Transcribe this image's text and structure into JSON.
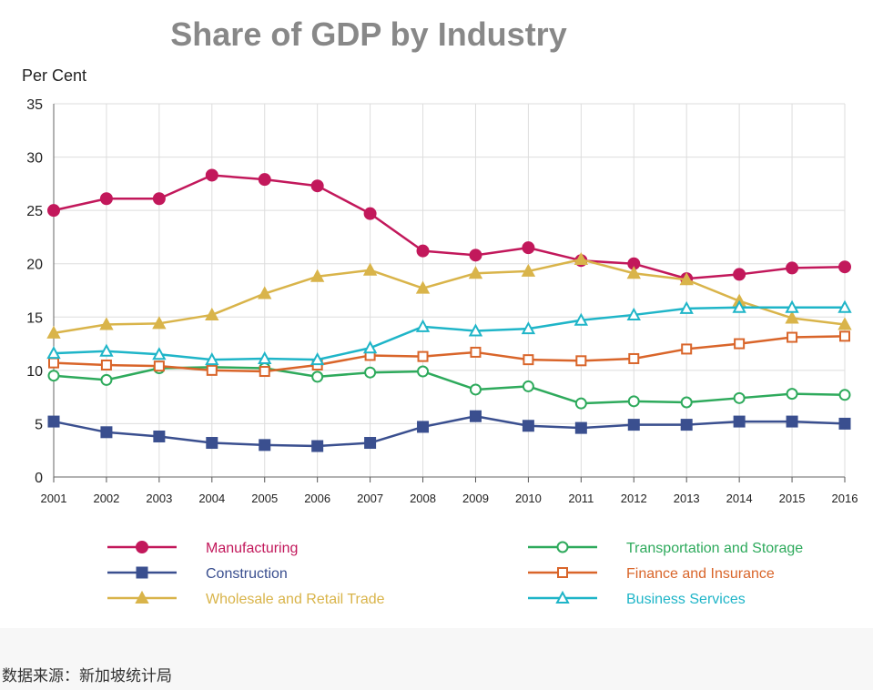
{
  "chart_data": {
    "type": "line",
    "title": "Share of GDP by Industry",
    "ylabel": "Per Cent",
    "xlabel": "",
    "ylim": [
      0,
      35
    ],
    "yticks": [
      0,
      5,
      10,
      15,
      20,
      25,
      30,
      35
    ],
    "grid": true,
    "legend_position": "bottom",
    "x": [
      2001,
      2002,
      2003,
      2004,
      2005,
      2006,
      2007,
      2008,
      2009,
      2010,
      2011,
      2012,
      2013,
      2014,
      2015,
      2016
    ],
    "series": [
      {
        "name": "Manufacturing",
        "color": "#c2185b",
        "marker": "circle-filled",
        "values": [
          25.0,
          26.1,
          26.1,
          28.3,
          27.9,
          27.3,
          24.7,
          21.2,
          20.8,
          21.5,
          20.3,
          20.0,
          18.6,
          19.0,
          19.6,
          19.7
        ]
      },
      {
        "name": "Construction",
        "color": "#3a4f8f",
        "marker": "square-filled",
        "values": [
          5.2,
          4.2,
          3.8,
          3.2,
          3.0,
          2.9,
          3.2,
          4.7,
          5.7,
          4.8,
          4.6,
          4.9,
          4.9,
          5.2,
          5.2,
          5.0
        ]
      },
      {
        "name": "Wholesale and Retail Trade",
        "color": "#d9b44a",
        "marker": "triangle-filled",
        "values": [
          13.5,
          14.3,
          14.4,
          15.2,
          17.2,
          18.8,
          19.4,
          17.7,
          19.1,
          19.3,
          20.4,
          19.1,
          18.5,
          16.5,
          14.9,
          14.3
        ]
      },
      {
        "name": "Transportation and Storage",
        "color": "#2eaa5c",
        "marker": "circle-open",
        "values": [
          9.5,
          9.1,
          10.2,
          10.3,
          10.2,
          9.4,
          9.8,
          9.9,
          8.2,
          8.5,
          6.9,
          7.1,
          7.0,
          7.4,
          7.8,
          7.7
        ]
      },
      {
        "name": "Finance and Insurance",
        "color": "#d9652a",
        "marker": "square-open",
        "values": [
          10.7,
          10.5,
          10.4,
          10.0,
          9.9,
          10.5,
          11.4,
          11.3,
          11.7,
          11.0,
          10.9,
          11.1,
          12.0,
          12.5,
          13.1,
          13.2
        ]
      },
      {
        "name": "Business Services",
        "color": "#1fb5c8",
        "marker": "triangle-open",
        "values": [
          11.6,
          11.8,
          11.5,
          11.0,
          11.1,
          11.0,
          12.1,
          14.1,
          13.7,
          13.9,
          14.7,
          15.2,
          15.8,
          15.9,
          15.9,
          15.9
        ]
      }
    ]
  },
  "footer": {
    "source_note": "数据来源：新加坡统计局"
  }
}
